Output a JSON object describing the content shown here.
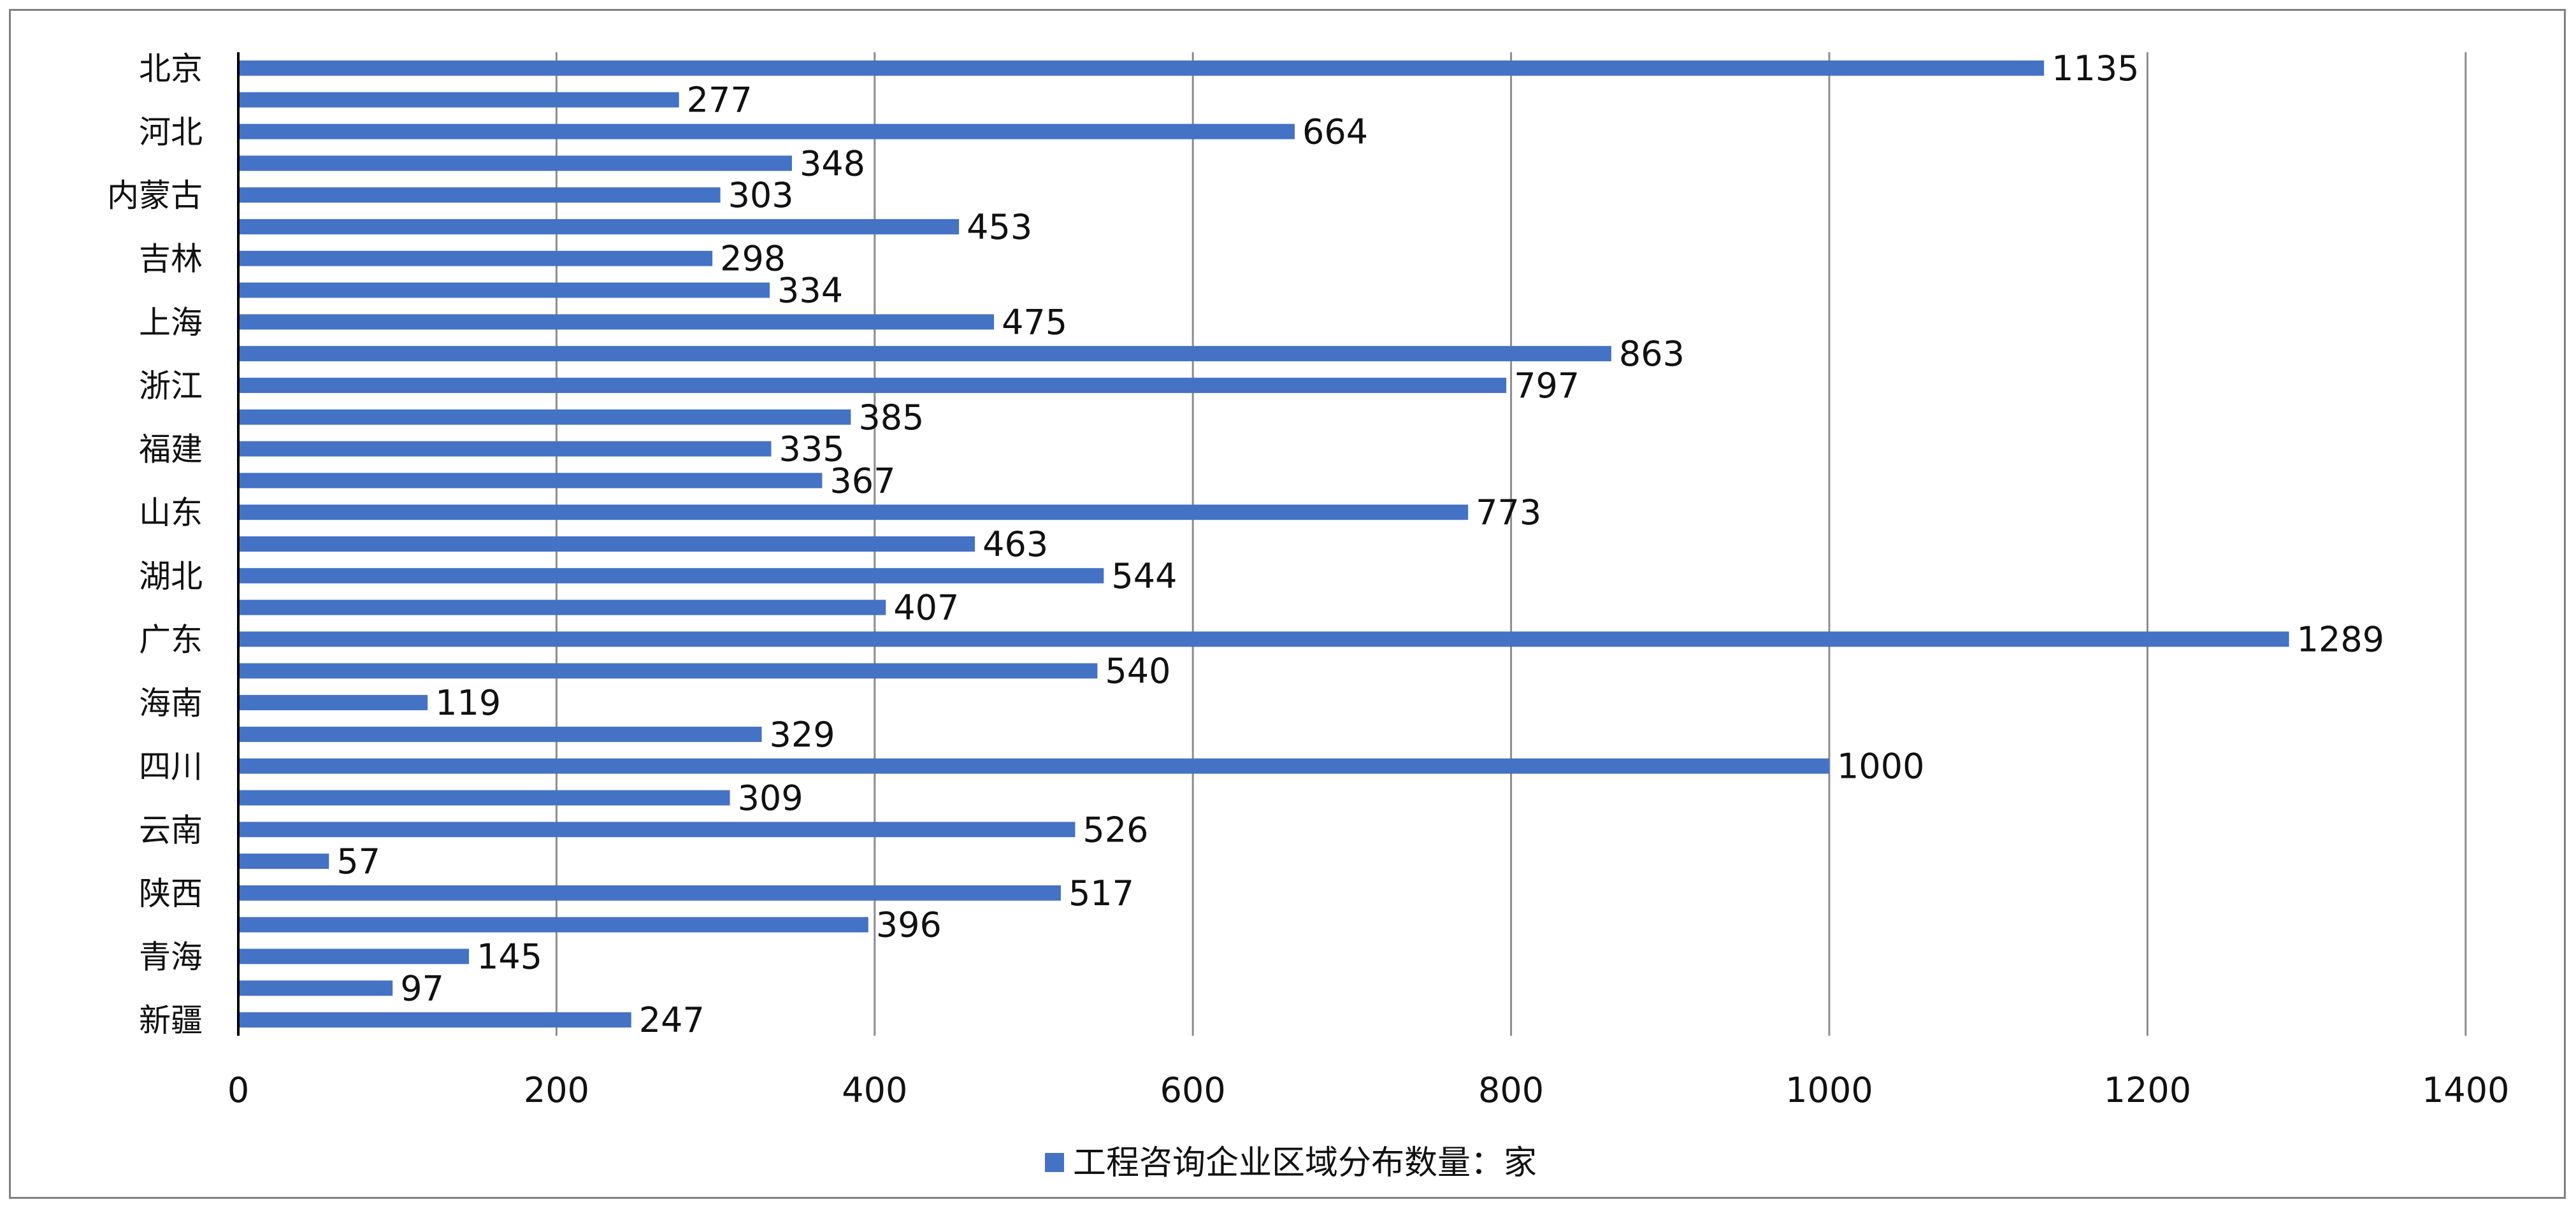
{
  "chart_data": {
    "type": "bar",
    "orientation": "horizontal",
    "title": "",
    "xlabel": "",
    "ylabel": "",
    "xlim": [
      0,
      1400
    ],
    "x_ticks": [
      0,
      200,
      400,
      600,
      800,
      1000,
      1200,
      1400
    ],
    "x_tick_labels": [
      "0",
      "200",
      "400",
      "600",
      "800",
      "1000",
      "1200",
      "1400"
    ],
    "grid": "vertical",
    "legend_position": "bottom",
    "categories": [
      "北京",
      "",
      "河北",
      "",
      "内蒙古",
      "",
      "吉林",
      "",
      "上海",
      "",
      "浙江",
      "",
      "福建",
      "",
      "山东",
      "",
      "湖北",
      "",
      "广东",
      "",
      "海南",
      "",
      "四川",
      "",
      "云南",
      "",
      "陕西",
      "",
      "青海",
      "",
      "新疆"
    ],
    "series": [
      {
        "name": "工程咨询企业区域分布数量：家",
        "color": "#4472c4",
        "values": [
          1135,
          277,
          664,
          348,
          303,
          453,
          298,
          334,
          475,
          863,
          797,
          385,
          335,
          367,
          773,
          463,
          544,
          407,
          1289,
          540,
          119,
          329,
          1000,
          309,
          526,
          57,
          517,
          396,
          145,
          97,
          247
        ],
        "value_labels": [
          "1135",
          "277",
          "664",
          "348",
          "303",
          "453",
          "298",
          "334",
          "475",
          "863",
          "797",
          "385",
          "335",
          "367",
          "773",
          "463",
          "544",
          "407",
          "1289",
          "540",
          "119",
          "329",
          "1000",
          "309",
          "526",
          "57",
          "517",
          "396",
          "145",
          "97",
          "247"
        ]
      }
    ]
  }
}
